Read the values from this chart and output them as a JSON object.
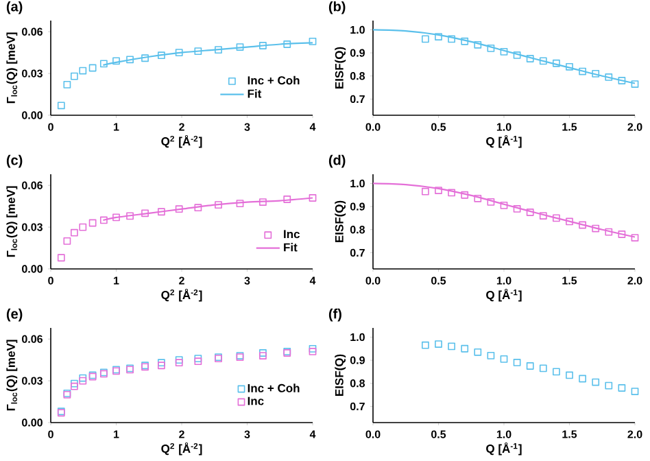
{
  "chart_data": [
    {
      "type": "scatter",
      "title": "(a)",
      "xlabel": "Q$^{2}$ [Å$^{-2}$]",
      "ylabel": "Γ$_{loc}$(Q) [meV]",
      "xlim": [
        0,
        4
      ],
      "ylim": [
        0,
        0.068
      ],
      "xticks": [
        0,
        1,
        2,
        3,
        4
      ],
      "yticks": [
        {
          "value": 0,
          "label": "0.00"
        },
        {
          "value": 0.03,
          "label": "0.03"
        },
        {
          "value": 0.06,
          "label": "0.06"
        }
      ],
      "legend": "bottom right",
      "grid": false,
      "marker": "square",
      "series": [
        {
          "name": "Inc + Coh",
          "color": "#5bc0eb",
          "x": [
            0.16,
            0.25,
            0.36,
            0.49,
            0.64,
            0.81,
            1.0,
            1.21,
            1.44,
            1.69,
            1.96,
            2.25,
            2.56,
            2.89,
            3.24,
            3.61,
            4.0
          ],
          "values": [
            0.007,
            0.022,
            0.028,
            0.032,
            0.034,
            0.037,
            0.039,
            0.04,
            0.041,
            0.043,
            0.045,
            0.046,
            0.047,
            0.049,
            0.05,
            0.051,
            0.053
          ]
        },
        {
          "name": "Fit",
          "type": "line",
          "marker": "none",
          "color": "#5bc0eb",
          "x": [
            0.8,
            1,
            1.5,
            2,
            2.5,
            3,
            3.5,
            4
          ],
          "values": [
            0.036,
            0.038,
            0.042,
            0.045,
            0.047,
            0.049,
            0.051,
            0.052
          ]
        }
      ]
    },
    {
      "type": "scatter",
      "title": "(b)",
      "xlabel": "Q [Å$^{-1}$]",
      "ylabel": "EISF(Q)",
      "xlim": [
        0,
        2
      ],
      "ylim": [
        0.63,
        1.04
      ],
      "xticks": [
        {
          "value": 0,
          "label": "0.0"
        },
        {
          "value": 0.5,
          "label": "0.5"
        },
        {
          "value": 1,
          "label": "1.0"
        },
        {
          "value": 1.5,
          "label": "1.5"
        },
        {
          "value": 2,
          "label": "2.0"
        }
      ],
      "yticks": [
        0.7,
        0.8,
        0.9,
        {
          "value": 1,
          "label": "1.0"
        }
      ],
      "grid": false,
      "marker": "square",
      "series": [
        {
          "color": "#5bc0eb",
          "x": [
            0.4,
            0.5,
            0.6,
            0.7,
            0.8,
            0.9,
            1.0,
            1.1,
            1.2,
            1.3,
            1.4,
            1.5,
            1.6,
            1.7,
            1.8,
            1.9,
            2.0
          ],
          "values": [
            0.96,
            0.97,
            0.96,
            0.95,
            0.935,
            0.92,
            0.905,
            0.89,
            0.875,
            0.865,
            0.855,
            0.84,
            0.82,
            0.81,
            0.795,
            0.78,
            0.765
          ]
        },
        {
          "type": "line",
          "marker": "none",
          "color": "#5bc0eb",
          "x": [
            0,
            0.25,
            0.5,
            0.75,
            1.0,
            1.25,
            1.5,
            1.75,
            2.0
          ],
          "values": [
            1.0,
            0.995,
            0.978,
            0.948,
            0.91,
            0.872,
            0.836,
            0.8,
            0.768
          ]
        }
      ]
    },
    {
      "type": "scatter",
      "title": "(c)",
      "xlabel": "Q$^{2}$ [Å$^{-2}$]",
      "ylabel": "Γ$_{loc}$(Q) [meV]",
      "xlim": [
        0,
        4
      ],
      "ylim": [
        0,
        0.068
      ],
      "xticks": [
        0,
        1,
        2,
        3,
        4
      ],
      "yticks": [
        {
          "value": 0,
          "label": "0.00"
        },
        {
          "value": 0.03,
          "label": "0.03"
        },
        {
          "value": 0.06,
          "label": "0.06"
        }
      ],
      "legend": "bottom right",
      "grid": false,
      "marker": "square",
      "series": [
        {
          "name": "Inc",
          "color": "#e46fd8",
          "x": [
            0.16,
            0.25,
            0.36,
            0.49,
            0.64,
            0.81,
            1.0,
            1.21,
            1.44,
            1.69,
            1.96,
            2.25,
            2.56,
            2.89,
            3.24,
            3.61,
            4.0
          ],
          "values": [
            0.008,
            0.02,
            0.026,
            0.03,
            0.033,
            0.035,
            0.037,
            0.038,
            0.04,
            0.041,
            0.043,
            0.044,
            0.046,
            0.047,
            0.048,
            0.05,
            0.051
          ]
        },
        {
          "name": "Fit",
          "type": "line",
          "marker": "none",
          "color": "#e46fd8",
          "x": [
            0.8,
            1,
            1.5,
            2,
            2.5,
            3,
            3.5,
            4
          ],
          "values": [
            0.035,
            0.037,
            0.04,
            0.043,
            0.046,
            0.048,
            0.049,
            0.051
          ]
        }
      ]
    },
    {
      "type": "scatter",
      "title": "(d)",
      "xlabel": "Q [Å$^{-1}$]",
      "ylabel": "EISF(Q)",
      "xlim": [
        0,
        2
      ],
      "ylim": [
        0.63,
        1.04
      ],
      "xticks": [
        {
          "value": 0,
          "label": "0.0"
        },
        {
          "value": 0.5,
          "label": "0.5"
        },
        {
          "value": 1,
          "label": "1.0"
        },
        {
          "value": 1.5,
          "label": "1.5"
        },
        {
          "value": 2,
          "label": "2.0"
        }
      ],
      "yticks": [
        0.7,
        0.8,
        0.9,
        {
          "value": 1,
          "label": "1.0"
        }
      ],
      "grid": false,
      "marker": "square",
      "series": [
        {
          "color": "#e46fd8",
          "x": [
            0.4,
            0.5,
            0.6,
            0.7,
            0.8,
            0.9,
            1.0,
            1.1,
            1.2,
            1.3,
            1.4,
            1.5,
            1.6,
            1.7,
            1.8,
            1.9,
            2.0
          ],
          "values": [
            0.965,
            0.97,
            0.96,
            0.95,
            0.935,
            0.92,
            0.905,
            0.89,
            0.875,
            0.86,
            0.85,
            0.835,
            0.82,
            0.805,
            0.79,
            0.78,
            0.765
          ]
        },
        {
          "type": "line",
          "marker": "none",
          "color": "#e46fd8",
          "x": [
            0,
            0.25,
            0.5,
            0.75,
            1.0,
            1.25,
            1.5,
            1.75,
            2.0
          ],
          "values": [
            1.0,
            0.995,
            0.978,
            0.948,
            0.91,
            0.872,
            0.836,
            0.8,
            0.768
          ]
        }
      ]
    },
    {
      "type": "scatter",
      "title": "(e)",
      "xlabel": "Q$^{2}$ [Å$^{-2}$]",
      "ylabel": "Γ$_{loc}$(Q) [meV]",
      "xlim": [
        0,
        4
      ],
      "ylim": [
        0,
        0.068
      ],
      "xticks": [
        0,
        1,
        2,
        3,
        4
      ],
      "yticks": [
        {
          "value": 0,
          "label": "0.00"
        },
        {
          "value": 0.03,
          "label": "0.03"
        },
        {
          "value": 0.06,
          "label": "0.06"
        }
      ],
      "legend": "bottom right",
      "grid": false,
      "marker": "square",
      "series": [
        {
          "name": "Inc + Coh",
          "color": "#5bc0eb",
          "x": [
            0.16,
            0.25,
            0.36,
            0.49,
            0.64,
            0.81,
            1.0,
            1.21,
            1.44,
            1.69,
            1.96,
            2.25,
            2.56,
            2.89,
            3.24,
            3.61,
            4.0
          ],
          "values": [
            0.008,
            0.021,
            0.028,
            0.032,
            0.034,
            0.036,
            0.038,
            0.039,
            0.041,
            0.043,
            0.045,
            0.046,
            0.047,
            0.048,
            0.05,
            0.051,
            0.053
          ]
        },
        {
          "name": "Inc",
          "color": "#e46fd8",
          "x": [
            0.16,
            0.25,
            0.36,
            0.49,
            0.64,
            0.81,
            1.0,
            1.21,
            1.44,
            1.69,
            1.96,
            2.25,
            2.56,
            2.89,
            3.24,
            3.61,
            4.0
          ],
          "values": [
            0.007,
            0.02,
            0.026,
            0.03,
            0.033,
            0.035,
            0.037,
            0.038,
            0.04,
            0.041,
            0.043,
            0.044,
            0.046,
            0.047,
            0.048,
            0.05,
            0.051
          ]
        }
      ]
    },
    {
      "type": "scatter",
      "title": "(f)",
      "xlabel": "Q [Å$^{-1}$]",
      "ylabel": "EISF(Q)",
      "xlim": [
        0,
        2
      ],
      "ylim": [
        0.63,
        1.04
      ],
      "xticks": [
        {
          "value": 0,
          "label": "0.0"
        },
        {
          "value": 0.5,
          "label": "0.5"
        },
        {
          "value": 1,
          "label": "1.0"
        },
        {
          "value": 1.5,
          "label": "1.5"
        },
        {
          "value": 2,
          "label": "2.0"
        }
      ],
      "yticks": [
        0.7,
        0.8,
        0.9,
        {
          "value": 1,
          "label": "1.0"
        }
      ],
      "grid": false,
      "marker": "square",
      "series": [
        {
          "color": "#5bc0eb",
          "x": [
            0.4,
            0.5,
            0.6,
            0.7,
            0.8,
            0.9,
            1.0,
            1.1,
            1.2,
            1.3,
            1.4,
            1.5,
            1.6,
            1.7,
            1.8,
            1.9,
            2.0
          ],
          "values": [
            0.965,
            0.97,
            0.96,
            0.95,
            0.935,
            0.92,
            0.905,
            0.89,
            0.875,
            0.865,
            0.85,
            0.835,
            0.82,
            0.805,
            0.79,
            0.78,
            0.765
          ]
        }
      ]
    }
  ]
}
